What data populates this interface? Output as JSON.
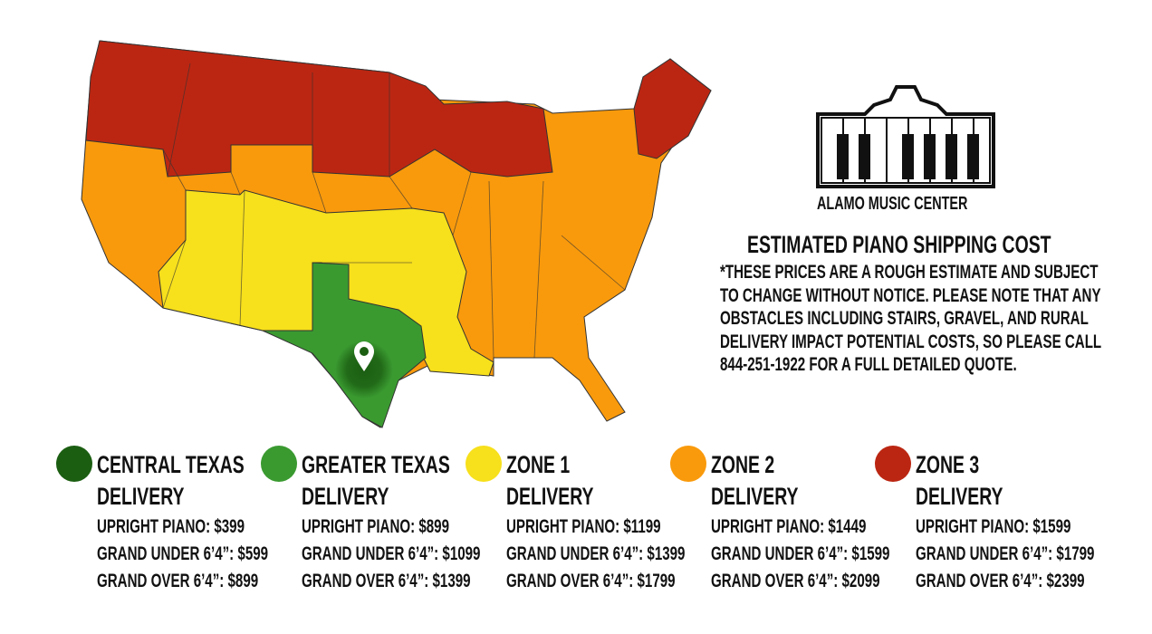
{
  "logo": {
    "text": "ALAMO MUSIC CENTER"
  },
  "heading": "ESTIMATED PIANO SHIPPING COST",
  "note_lines": [
    "*THESE PRICES ARE A ROUGH ESTIMATE AND SUBJECT",
    "TO CHANGE WITHOUT NOTICE. PLEASE NOTE THAT ANY",
    "OBSTACLES INCLUDING STAIRS, GRAVEL, AND RURAL",
    "DELIVERY IMPACT POTENTIAL COSTS, SO PLEASE CALL",
    "844-251-1922 FOR A FULL DETAILED QUOTE."
  ],
  "map": {
    "pin_icon": "location-pin-icon"
  },
  "zones": [
    {
      "title1": "CENTRAL TEXAS",
      "title2": "DELIVERY",
      "color": "#1b5e12",
      "upright": "UPRIGHT PIANO: $399",
      "grand_under": "GRAND UNDER 6’4”: $599",
      "grand_over": "GRAND OVER 6’4”: $899"
    },
    {
      "title1": "GREATER TEXAS",
      "title2": "DELIVERY",
      "color": "#3a9a30",
      "upright": "UPRIGHT PIANO: $899",
      "grand_under": "GRAND UNDER 6’4”: $1099",
      "grand_over": "GRAND OVER 6’4”: $1399"
    },
    {
      "title1": "ZONE 1",
      "title2": "DELIVERY",
      "color": "#f7e01c",
      "upright": "UPRIGHT PIANO: $1199",
      "grand_under": "GRAND UNDER 6’4”: $1399",
      "grand_over": "GRAND OVER 6’4”: $1799"
    },
    {
      "title1": "ZONE 2",
      "title2": "DELIVERY",
      "color": "#f99a0c",
      "upright": "UPRIGHT PIANO: $1449",
      "grand_under": "GRAND UNDER 6’4”: $1599",
      "grand_over": "GRAND OVER 6’4”: $2099"
    },
    {
      "title1": "ZONE 3",
      "title2": "DELIVERY",
      "color": "#bb2612",
      "upright": "UPRIGHT PIANO: $1599",
      "grand_under": "GRAND UNDER 6’4”: $1799",
      "grand_over": "GRAND OVER 6’4”: $2399"
    }
  ]
}
